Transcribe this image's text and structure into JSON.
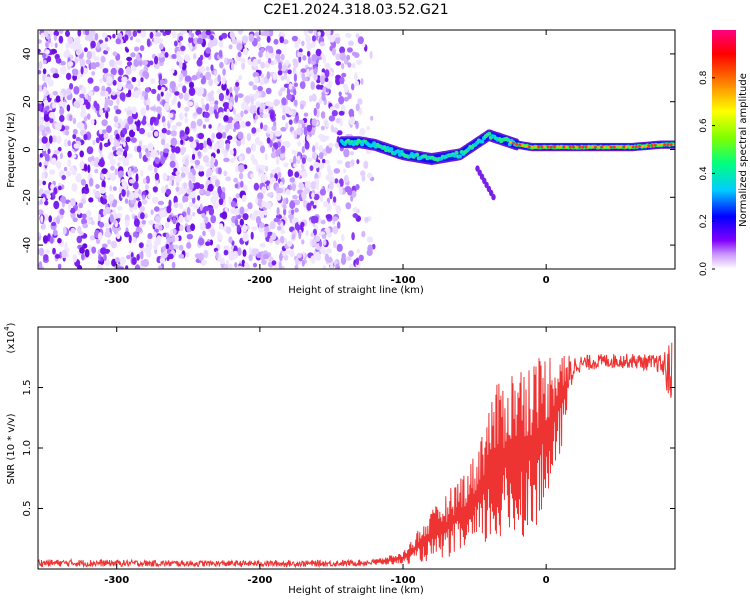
{
  "title": "C2E1.2024.318.03.52.G21",
  "colors": {
    "spectrogram_scatter": "#8a2be2",
    "snr_line": "#ee3333",
    "axis": "#000000"
  },
  "chart_data": [
    {
      "type": "heatmap",
      "title": "C2E1.2024.318.03.52.G21",
      "xlabel": "Height of straight line (km)",
      "ylabel": "Frequency (Hz)",
      "xlim": [
        -355,
        90
      ],
      "ylim": [
        -50,
        50
      ],
      "x_ticks": [
        -300,
        -200,
        -100,
        0
      ],
      "y_ticks": [
        -40,
        -20,
        0,
        20,
        40
      ],
      "x_tick_labels": [
        "-300",
        "-200",
        "-100",
        "0"
      ],
      "y_tick_labels": [
        "-40",
        "-20",
        "0",
        "20",
        "40"
      ],
      "noise_region": {
        "x": [
          -355,
          -118
        ],
        "y": [
          -50,
          50
        ]
      },
      "signal_trace": {
        "x": [
          -143,
          -130,
          -120,
          -110,
          -100,
          -90,
          -80,
          -70,
          -60,
          -50,
          -40,
          -30,
          -20,
          -10,
          0,
          20,
          40,
          60,
          80,
          90
        ],
        "y": [
          3,
          3,
          2,
          0,
          -2,
          -3,
          -4,
          -3,
          -2,
          2,
          6,
          4,
          2,
          1,
          1,
          1,
          1,
          1,
          2,
          2
        ]
      },
      "colorbar": {
        "label": "Normalized spectral amplitude",
        "range": [
          0,
          1
        ],
        "ticks": [
          0.0,
          0.2,
          0.4,
          0.6,
          0.8
        ],
        "tick_labels": [
          "0.0",
          "0.2",
          "0.4",
          "0.6",
          "0.8"
        ],
        "colormap": [
          "#ffffff",
          "#cc99ff",
          "#8000ff",
          "#0000ff",
          "#00ccff",
          "#00ff80",
          "#80ff00",
          "#ffff00",
          "#ff8000",
          "#ff0000",
          "#ff0080"
        ]
      },
      "grid": false
    },
    {
      "type": "line",
      "xlabel": "Height of straight line (km)",
      "ylabel": "SNR (10 * v/v)",
      "y_multiplier": "(x10",
      "y_multiplier_exp": "4",
      "y_multiplier_close": ")",
      "xlim": [
        -355,
        90
      ],
      "ylim": [
        0,
        2.0
      ],
      "x_ticks": [
        -300,
        -200,
        -100,
        0
      ],
      "y_ticks": [
        0.5,
        1.0,
        1.5
      ],
      "x_tick_labels": [
        "-300",
        "-200",
        "-100",
        "0"
      ],
      "y_tick_labels": [
        "0.5",
        "1.0",
        "1.5"
      ],
      "series": [
        {
          "color": "#ee3333",
          "envelope": {
            "x": [
              -355,
              -250,
              -150,
              -120,
              -100,
              -90,
              -80,
              -70,
              -60,
              -50,
              -40,
              -30,
              -20,
              -10,
              0,
              10,
              20,
              40,
              60,
              80,
              88
            ],
            "upper": [
              0.08,
              0.07,
              0.07,
              0.08,
              0.14,
              0.32,
              0.48,
              0.62,
              0.78,
              0.95,
              1.4,
              1.62,
              1.7,
              1.76,
              1.8,
              1.84,
              1.76,
              1.78,
              1.78,
              1.77,
              1.9
            ],
            "lower": [
              0.02,
              0.02,
              0.02,
              0.03,
              0.04,
              0.05,
              0.07,
              0.09,
              0.12,
              0.15,
              0.18,
              0.2,
              0.24,
              0.3,
              0.45,
              0.95,
              1.62,
              1.66,
              1.66,
              1.62,
              1.3
            ]
          }
        }
      ],
      "grid": false
    }
  ]
}
